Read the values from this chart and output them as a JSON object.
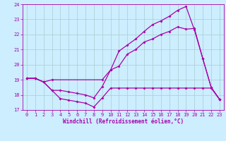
{
  "xlabel": "Windchill (Refroidissement éolien,°C)",
  "xlim": [
    -0.5,
    23.5
  ],
  "ylim": [
    17,
    24
  ],
  "yticks": [
    17,
    18,
    19,
    20,
    21,
    22,
    23,
    24
  ],
  "xticks": [
    0,
    1,
    2,
    3,
    4,
    5,
    6,
    7,
    8,
    9,
    10,
    11,
    12,
    13,
    14,
    15,
    16,
    17,
    18,
    19,
    20,
    21,
    22,
    23
  ],
  "bg_color": "#cceeff",
  "line_color": "#aa00aa",
  "grid_color": "#aacccc",
  "line1_x": [
    0,
    1,
    2,
    3,
    4,
    5,
    6,
    7,
    8,
    9,
    10,
    11,
    12,
    13,
    14,
    15,
    16,
    17,
    18,
    19,
    20,
    21,
    22,
    23
  ],
  "line1_y": [
    19.1,
    19.1,
    18.85,
    18.3,
    17.75,
    17.65,
    17.55,
    17.45,
    17.2,
    17.8,
    18.45,
    18.45,
    18.45,
    18.45,
    18.45,
    18.45,
    18.45,
    18.45,
    18.45,
    18.45,
    18.45,
    18.45,
    18.45,
    17.7
  ],
  "line2_x": [
    0,
    1,
    2,
    3,
    9,
    10,
    11,
    12,
    13,
    14,
    15,
    16,
    17,
    18,
    19,
    20,
    21,
    22,
    23
  ],
  "line2_y": [
    19.1,
    19.1,
    18.85,
    19.0,
    19.0,
    19.65,
    20.9,
    21.3,
    21.7,
    22.2,
    22.65,
    22.9,
    23.2,
    23.6,
    23.85,
    22.3,
    20.4,
    18.5,
    17.7
  ],
  "line3_x": [
    0,
    1,
    2,
    3,
    4,
    5,
    6,
    7,
    8,
    9,
    10,
    11,
    12,
    13,
    14,
    15,
    16,
    17,
    18,
    19,
    20,
    21,
    22,
    23
  ],
  "line3_y": [
    19.1,
    19.1,
    18.85,
    18.3,
    18.3,
    18.2,
    18.1,
    18.0,
    17.8,
    18.55,
    19.65,
    19.9,
    20.7,
    21.0,
    21.5,
    21.7,
    22.0,
    22.2,
    22.5,
    22.35,
    22.4,
    20.4,
    18.5,
    17.7
  ]
}
